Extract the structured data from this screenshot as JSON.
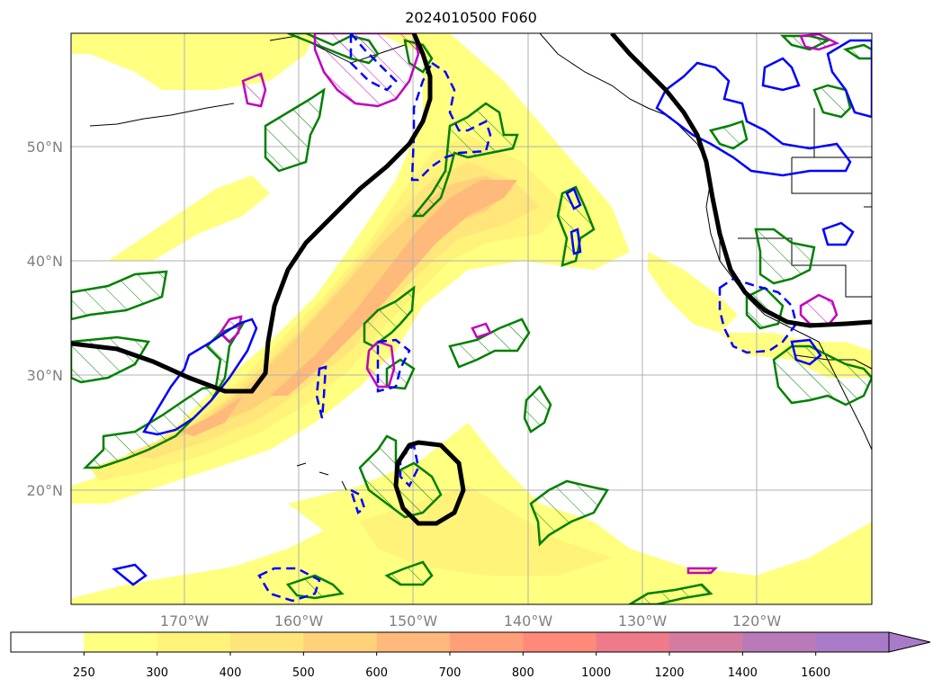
{
  "title": "2024010500 F060",
  "latitude_labels": [
    "50°N",
    "40°N",
    "30°N",
    "20°N"
  ],
  "longitude_labels": [
    "170°W",
    "160°W",
    "150°W",
    "140°W",
    "130°W",
    "120°W"
  ],
  "colorbar": {
    "levels": [
      "250",
      "300",
      "400",
      "500",
      "600",
      "700",
      "800",
      "1000",
      "1200",
      "1400",
      "1600"
    ],
    "colors": [
      "#ffffff",
      "#ffff80",
      "#fff37a",
      "#ffe57a",
      "#ffd27a",
      "#ffb97a",
      "#ff9f7a",
      "#ff8a7a",
      "#ee7a8a",
      "#d57aa0",
      "#b97ab9",
      "#a87ac8"
    ],
    "extend": "max"
  },
  "colors": {
    "black_contour": "#000000",
    "green_contour": "#008000",
    "blue_contour": "#0000ff",
    "magenta_contour": "#c000c0",
    "grid": "#b0b0b0",
    "coastline": "#000000"
  }
}
